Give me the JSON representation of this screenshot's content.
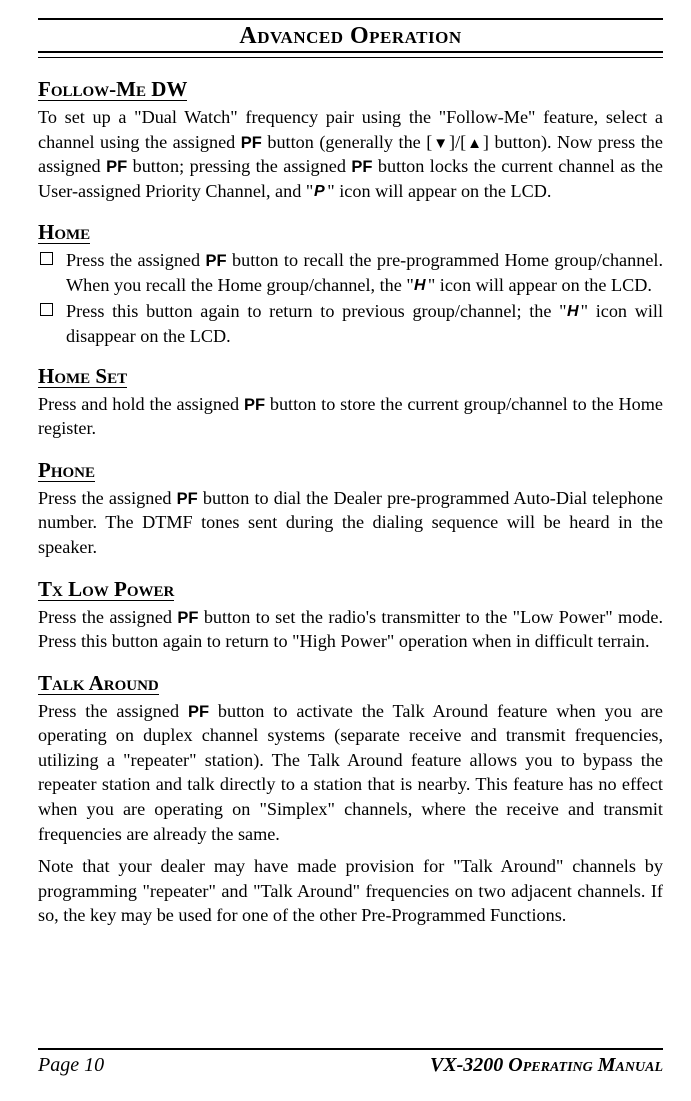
{
  "title": "Advanced Operation",
  "pf_label": "PF",
  "tri_down": "▼",
  "tri_up": "▲",
  "sections": {
    "follow_me_dw": {
      "heading": "Follow-Me DW",
      "p1a": "To set up a \"Dual Watch\" frequency pair using the \"Follow-Me\" feature, select a channel using the assigned ",
      "p1b": " button (generally the [",
      "p1c": "]/[",
      "p1d": "] button). Now press the assigned ",
      "p1e": " button; pressing the assigned ",
      "p1f": " button locks the current channel as the User-assigned Priority Channel, and \"",
      "p1g": "\" icon will appear on the LCD."
    },
    "home": {
      "heading": "Home",
      "li1a": "Press the assigned ",
      "li1b": " button to recall the pre-programmed Home group/channel. When you recall the Home group/channel, the \"",
      "li1c": "\" icon will appear on the LCD.",
      "li2a": "Press this button again to return to previous group/channel; the \"",
      "li2b": "\" icon will disappear on the LCD."
    },
    "home_set": {
      "heading": "Home Set",
      "p1a": "Press and hold the assigned ",
      "p1b": " button to store the current group/channel to the Home register."
    },
    "phone": {
      "heading": "Phone",
      "p1a": "Press the assigned ",
      "p1b": " button to dial the Dealer pre-programmed Auto-Dial telephone number. The DTMF tones sent during the dialing sequence will be heard in the speaker."
    },
    "tx_low_power": {
      "heading": "Tx Low Power",
      "p1a": "Press the assigned ",
      "p1b": " button to set the radio's transmitter to the \"Low Power\" mode. Press this button again to return to \"High Power\" operation when in difficult terrain."
    },
    "talk_around": {
      "heading": "Talk Around",
      "p1a": "Press the assigned ",
      "p1b": " button to activate the Talk Around feature when you are operating on duplex channel systems (separate receive and transmit frequencies, utilizing a \"repeater\" station). The Talk Around feature allows you to bypass the repeater station and talk directly to a station that is nearby. This feature has no effect when you are operating on \"Simplex\" channels, where the receive and transmit frequencies are already the same.",
      "p2": "Note that your dealer may have made provision for \"Talk Around\" channels by programming \"repeater\" and \"Talk Around\" frequencies on two adjacent channels. If so, the key may be used for one of the other Pre-Programmed Functions."
    }
  },
  "footer": {
    "left": "Page 10",
    "right": "VX-3200 Operating Manual"
  },
  "icons": {
    "P": "P",
    "H": "H"
  }
}
